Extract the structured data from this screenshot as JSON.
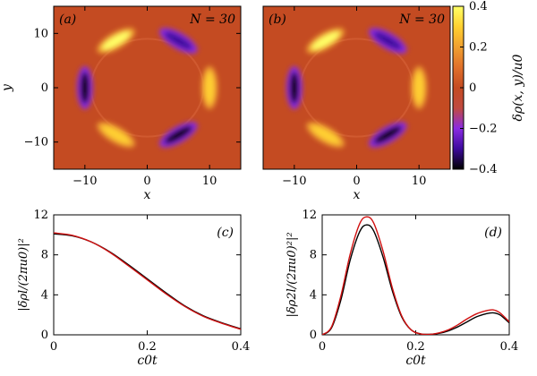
{
  "chart_data": [
    {
      "id": "a",
      "type": "heatmap",
      "panel_label": "(a)",
      "annotation": "N = 30",
      "xlabel": "x",
      "ylabel": "y",
      "xlim": [
        -15,
        15
      ],
      "ylim": [
        -15,
        15
      ],
      "xticks": [
        -10,
        0,
        10
      ],
      "yticks": [
        10,
        0,
        -10
      ],
      "xtick_labels": [
        "-10",
        "0",
        "10"
      ],
      "ytick_labels": [
        "10",
        "0",
        "-10"
      ],
      "background_value": 0.0,
      "ring_radius": 10,
      "lobes": [
        {
          "angle_deg": 120,
          "value": 0.35
        },
        {
          "angle_deg": 60,
          "value": -0.35
        },
        {
          "angle_deg": 180,
          "value": -0.38
        },
        {
          "angle_deg": 0,
          "value": 0.32
        },
        {
          "angle_deg": 240,
          "value": 0.34
        },
        {
          "angle_deg": 300,
          "value": -0.36
        }
      ]
    },
    {
      "id": "b",
      "type": "heatmap",
      "panel_label": "(b)",
      "annotation": "N = 30",
      "xlabel": "x",
      "xlim": [
        -15,
        15
      ],
      "ylim": [
        -15,
        15
      ],
      "xticks": [
        -10,
        0,
        10
      ],
      "xtick_labels": [
        "-10",
        "0",
        "10"
      ],
      "background_value": 0.0,
      "ring_radius": 10,
      "lobes": [
        {
          "angle_deg": 120,
          "value": 0.35
        },
        {
          "angle_deg": 60,
          "value": -0.35
        },
        {
          "angle_deg": 180,
          "value": -0.38
        },
        {
          "angle_deg": 0,
          "value": 0.32
        },
        {
          "angle_deg": 240,
          "value": 0.34
        },
        {
          "angle_deg": 300,
          "value": -0.36
        }
      ]
    },
    {
      "id": "colorbar",
      "type": "colorbar",
      "label": "δρ(x, y)/u0",
      "range": [
        -0.4,
        0.4
      ],
      "ticks": [
        0.4,
        0.2,
        0,
        -0.2,
        -0.4
      ],
      "tick_labels": [
        "0.4",
        "0.2",
        "0",
        "−0.2",
        "−0.4"
      ],
      "colors": [
        "#000000",
        "#3c0a9c",
        "#8a2be2",
        "#c04a40",
        "#c44b22",
        "#e0702a",
        "#f0a030",
        "#ffd030",
        "#ffff66"
      ]
    },
    {
      "id": "c",
      "type": "line",
      "panel_label": "(c)",
      "xlabel": "c0t",
      "ylabel": "|δρl/(2πu0)|²",
      "xlim": [
        0,
        0.4
      ],
      "ylim": [
        0,
        12
      ],
      "xticks": [
        0,
        0.2,
        0.4
      ],
      "xtick_labels": [
        "0",
        "0.2",
        "0.4"
      ],
      "yticks": [
        0,
        4,
        8,
        12
      ],
      "ytick_labels": [
        "0",
        "4",
        "8",
        "12"
      ],
      "series": [
        {
          "name": "black",
          "color": "#000000",
          "x": [
            0,
            0.04,
            0.08,
            0.12,
            0.16,
            0.2,
            0.24,
            0.28,
            0.32,
            0.36,
            0.4
          ],
          "y": [
            10.1,
            9.9,
            9.3,
            8.3,
            7.0,
            5.6,
            4.2,
            2.9,
            1.9,
            1.2,
            0.6
          ]
        },
        {
          "name": "red",
          "color": "#d01010",
          "x": [
            0,
            0.04,
            0.08,
            0.12,
            0.16,
            0.2,
            0.24,
            0.28,
            0.32,
            0.36,
            0.4
          ],
          "y": [
            10.2,
            9.95,
            9.3,
            8.25,
            6.9,
            5.5,
            4.1,
            2.85,
            1.85,
            1.15,
            0.55
          ]
        }
      ]
    },
    {
      "id": "d",
      "type": "line",
      "panel_label": "(d)",
      "xlabel": "c0t",
      "ylabel": "|δρ2l/(2πu0)²|²",
      "xlim": [
        0,
        0.4
      ],
      "ylim": [
        0,
        12
      ],
      "xticks": [
        0,
        0.2,
        0.4
      ],
      "xtick_labels": [
        "0",
        "0.2",
        "0.4"
      ],
      "yticks": [
        0,
        4,
        8,
        12
      ],
      "ytick_labels": [
        "0",
        "4",
        "8",
        "12"
      ],
      "series": [
        {
          "name": "black",
          "color": "#000000",
          "x": [
            0,
            0.02,
            0.04,
            0.06,
            0.08,
            0.095,
            0.11,
            0.13,
            0.15,
            0.17,
            0.19,
            0.21,
            0.23,
            0.25,
            0.27,
            0.29,
            0.31,
            0.33,
            0.35,
            0.365,
            0.38,
            0.4
          ],
          "y": [
            0,
            0.7,
            3.5,
            7.5,
            10.3,
            11.0,
            10.4,
            7.8,
            4.4,
            1.8,
            0.5,
            0.1,
            0.05,
            0.15,
            0.4,
            0.8,
            1.3,
            1.8,
            2.1,
            2.2,
            2.0,
            1.2
          ]
        },
        {
          "name": "red",
          "color": "#d01010",
          "x": [
            0,
            0.02,
            0.04,
            0.06,
            0.08,
            0.095,
            0.11,
            0.13,
            0.15,
            0.17,
            0.19,
            0.21,
            0.23,
            0.25,
            0.27,
            0.29,
            0.31,
            0.33,
            0.35,
            0.365,
            0.38,
            0.4
          ],
          "y": [
            0,
            0.8,
            3.9,
            8.1,
            11.1,
            11.8,
            11.2,
            8.4,
            4.7,
            1.9,
            0.5,
            0.1,
            0.05,
            0.2,
            0.5,
            1.0,
            1.6,
            2.1,
            2.4,
            2.5,
            2.2,
            1.3
          ]
        }
      ]
    }
  ]
}
